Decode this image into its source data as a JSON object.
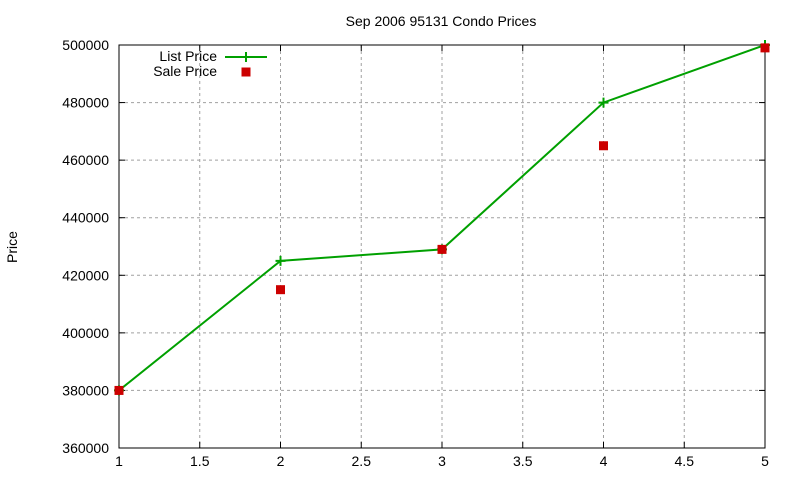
{
  "chart_data": {
    "type": "line",
    "title": "Sep 2006 95131 Condo Prices",
    "xlabel": "",
    "ylabel": "Price",
    "xlim": [
      1,
      5
    ],
    "ylim": [
      360000,
      500000
    ],
    "x_ticks": [
      "1",
      "1.5",
      "2",
      "2.5",
      "3",
      "3.5",
      "4",
      "4.5",
      "5"
    ],
    "y_ticks": [
      "360000",
      "380000",
      "400000",
      "420000",
      "440000",
      "460000",
      "480000",
      "500000"
    ],
    "grid": true,
    "legend_position": "top-left",
    "x": [
      1,
      2,
      3,
      4,
      5
    ],
    "series": [
      {
        "name": "List Price",
        "style": "line+cross",
        "color": "#00a000",
        "values": [
          380000,
          425000,
          429000,
          480000,
          500000
        ]
      },
      {
        "name": "Sale Price",
        "style": "square-points",
        "color": "#cc0000",
        "values": [
          380000,
          415000,
          429000,
          465000,
          499000
        ]
      }
    ]
  },
  "colors": {
    "axis": "#000000",
    "grid": "#a0a0a0",
    "list_price": "#00a000",
    "sale_price": "#cc0000"
  }
}
